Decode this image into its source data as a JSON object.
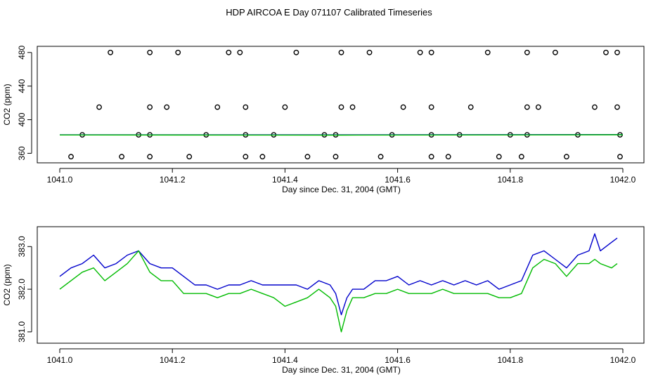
{
  "title": "HDP AIRCOA E  Day 071107  Calibrated Timeseries",
  "colors": {
    "blue": "#0000cc",
    "green": "#00bb00",
    "axis": "#000000"
  },
  "chart_data": [
    {
      "type": "scatter",
      "xlabel": "Day since Dec. 31, 2004 (GMT)",
      "ylabel": "CO2 (ppm)",
      "xlim": [
        1041.0,
        1042.0
      ],
      "ylim": [
        352,
        484
      ],
      "xticks": [
        "1041.0",
        "1041.2",
        "1041.4",
        "1041.6",
        "1041.8",
        "1042.0"
      ],
      "yticks": [
        "360",
        "400",
        "440",
        "480"
      ],
      "series": [
        {
          "style": "open-circles",
          "x": [
            1041.09,
            1041.16,
            1041.21,
            1041.3,
            1041.32,
            1041.42,
            1041.5,
            1041.55,
            1041.64,
            1041.66,
            1041.76,
            1041.83,
            1041.88,
            1041.97,
            1041.99
          ],
          "y": [
            480,
            480,
            480,
            480,
            480,
            480,
            480,
            480,
            480,
            480,
            480,
            480,
            480,
            480,
            480
          ]
        },
        {
          "style": "open-circles",
          "x": [
            1041.07,
            1041.16,
            1041.19,
            1041.28,
            1041.33,
            1041.4,
            1041.5,
            1041.52,
            1041.61,
            1041.66,
            1041.73,
            1041.83,
            1041.85,
            1041.95,
            1041.99
          ],
          "y": [
            415,
            415,
            415,
            415,
            415,
            415,
            415,
            415,
            415,
            415,
            415,
            415,
            415,
            415,
            415
          ]
        },
        {
          "style": "open-circles",
          "x": [
            1041.04,
            1041.14,
            1041.16,
            1041.26,
            1041.33,
            1041.38,
            1041.47,
            1041.49,
            1041.59,
            1041.66,
            1041.71,
            1041.8,
            1041.83,
            1041.92,
            1041.995
          ],
          "y": [
            382,
            382,
            382,
            382,
            382,
            382,
            382,
            382,
            382,
            382,
            382,
            382,
            382,
            382,
            382
          ]
        },
        {
          "style": "open-circles",
          "x": [
            1041.02,
            1041.11,
            1041.16,
            1041.23,
            1041.33,
            1041.36,
            1041.44,
            1041.49,
            1041.57,
            1041.66,
            1041.69,
            1041.78,
            1041.82,
            1041.9,
            1041.995
          ],
          "y": [
            356,
            356,
            356,
            356,
            356,
            356,
            356,
            356,
            356,
            356,
            356,
            356,
            356,
            356,
            356
          ]
        },
        {
          "style": "line-blue",
          "x": [
            1041.0,
            1041.5,
            1042.0
          ],
          "y": [
            382.0,
            382.0,
            382.3
          ]
        },
        {
          "style": "line-green",
          "x": [
            1041.0,
            1041.5,
            1042.0
          ],
          "y": [
            381.8,
            381.7,
            382.1
          ]
        }
      ]
    },
    {
      "type": "line",
      "xlabel": "Day since Dec. 31, 2004 (GMT)",
      "ylabel": "CO2 (ppm)",
      "xlim": [
        1041.0,
        1042.0
      ],
      "ylim": [
        380.8,
        383.4
      ],
      "xticks": [
        "1041.0",
        "1041.2",
        "1041.4",
        "1041.6",
        "1041.8",
        "1042.0"
      ],
      "yticks": [
        "381.0",
        "382.0",
        "383.0"
      ],
      "series": [
        {
          "color": "blue",
          "x": [
            1041.0,
            1041.02,
            1041.04,
            1041.06,
            1041.08,
            1041.1,
            1041.12,
            1041.14,
            1041.16,
            1041.18,
            1041.2,
            1041.22,
            1041.24,
            1041.26,
            1041.28,
            1041.3,
            1041.32,
            1041.34,
            1041.36,
            1041.38,
            1041.4,
            1041.42,
            1041.44,
            1041.46,
            1041.48,
            1041.49,
            1041.5,
            1041.51,
            1041.52,
            1041.54,
            1041.56,
            1041.58,
            1041.6,
            1041.62,
            1041.64,
            1041.66,
            1041.68,
            1041.7,
            1041.72,
            1041.74,
            1041.76,
            1041.78,
            1041.8,
            1041.82,
            1041.84,
            1041.86,
            1041.88,
            1041.9,
            1041.92,
            1041.94,
            1041.95,
            1041.96,
            1041.98,
            1041.99
          ],
          "y": [
            382.3,
            382.5,
            382.6,
            382.8,
            382.5,
            382.6,
            382.8,
            382.9,
            382.6,
            382.5,
            382.5,
            382.3,
            382.1,
            382.1,
            382.0,
            382.1,
            382.1,
            382.2,
            382.1,
            382.1,
            382.1,
            382.1,
            382.0,
            382.2,
            382.1,
            381.9,
            381.4,
            381.8,
            382.0,
            382.0,
            382.2,
            382.2,
            382.3,
            382.1,
            382.2,
            382.1,
            382.2,
            382.1,
            382.2,
            382.1,
            382.2,
            382.0,
            382.1,
            382.2,
            382.8,
            382.9,
            382.7,
            382.5,
            382.8,
            382.9,
            383.3,
            382.9,
            383.1,
            383.2
          ]
        },
        {
          "color": "green",
          "x": [
            1041.0,
            1041.02,
            1041.04,
            1041.06,
            1041.08,
            1041.1,
            1041.12,
            1041.14,
            1041.16,
            1041.18,
            1041.2,
            1041.22,
            1041.24,
            1041.26,
            1041.28,
            1041.3,
            1041.32,
            1041.34,
            1041.36,
            1041.38,
            1041.4,
            1041.42,
            1041.44,
            1041.46,
            1041.48,
            1041.49,
            1041.5,
            1041.51,
            1041.52,
            1041.54,
            1041.56,
            1041.58,
            1041.6,
            1041.62,
            1041.64,
            1041.66,
            1041.68,
            1041.7,
            1041.72,
            1041.74,
            1041.76,
            1041.78,
            1041.8,
            1041.82,
            1041.84,
            1041.86,
            1041.88,
            1041.9,
            1041.92,
            1041.94,
            1041.95,
            1041.96,
            1041.98,
            1041.99
          ],
          "y": [
            382.0,
            382.2,
            382.4,
            382.5,
            382.2,
            382.4,
            382.6,
            382.9,
            382.4,
            382.2,
            382.2,
            381.9,
            381.9,
            381.9,
            381.8,
            381.9,
            381.9,
            382.0,
            381.9,
            381.8,
            381.6,
            381.7,
            381.8,
            382.0,
            381.8,
            381.6,
            381.0,
            381.5,
            381.8,
            381.8,
            381.9,
            381.9,
            382.0,
            381.9,
            381.9,
            381.9,
            382.0,
            381.9,
            381.9,
            381.9,
            381.9,
            381.8,
            381.8,
            381.9,
            382.5,
            382.7,
            382.6,
            382.3,
            382.6,
            382.6,
            382.7,
            382.6,
            382.5,
            382.6
          ]
        }
      ]
    }
  ]
}
